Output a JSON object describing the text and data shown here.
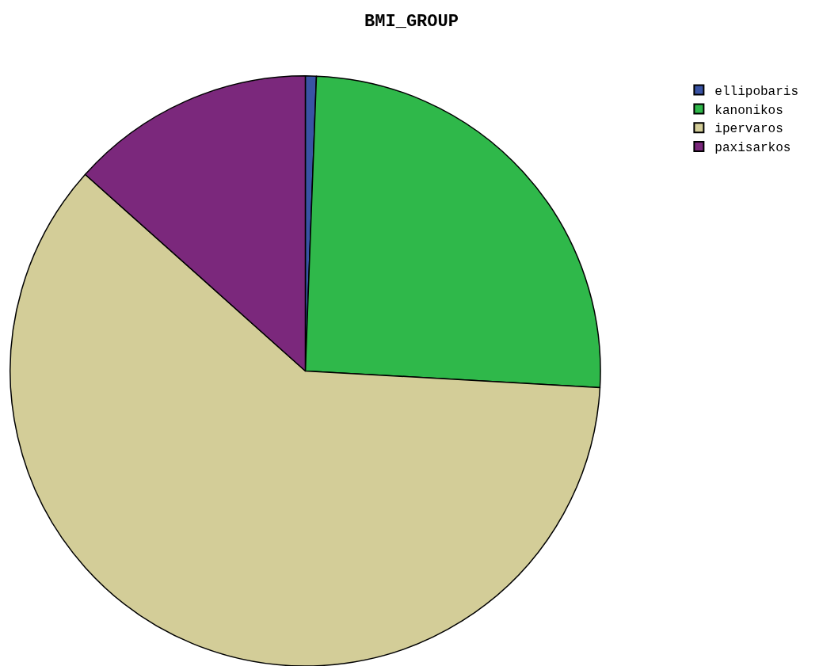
{
  "chart_data": {
    "type": "pie",
    "title": "BMI_GROUP",
    "categories": [
      "ellipobaris",
      "kanonikos",
      "ipervaros",
      "paxisarkos"
    ],
    "values": [
      0.6,
      25.3,
      60.7,
      13.4
    ],
    "colors": [
      "#3953a4",
      "#2fb84a",
      "#d3cd98",
      "#7b287c"
    ],
    "legend": "top right"
  }
}
